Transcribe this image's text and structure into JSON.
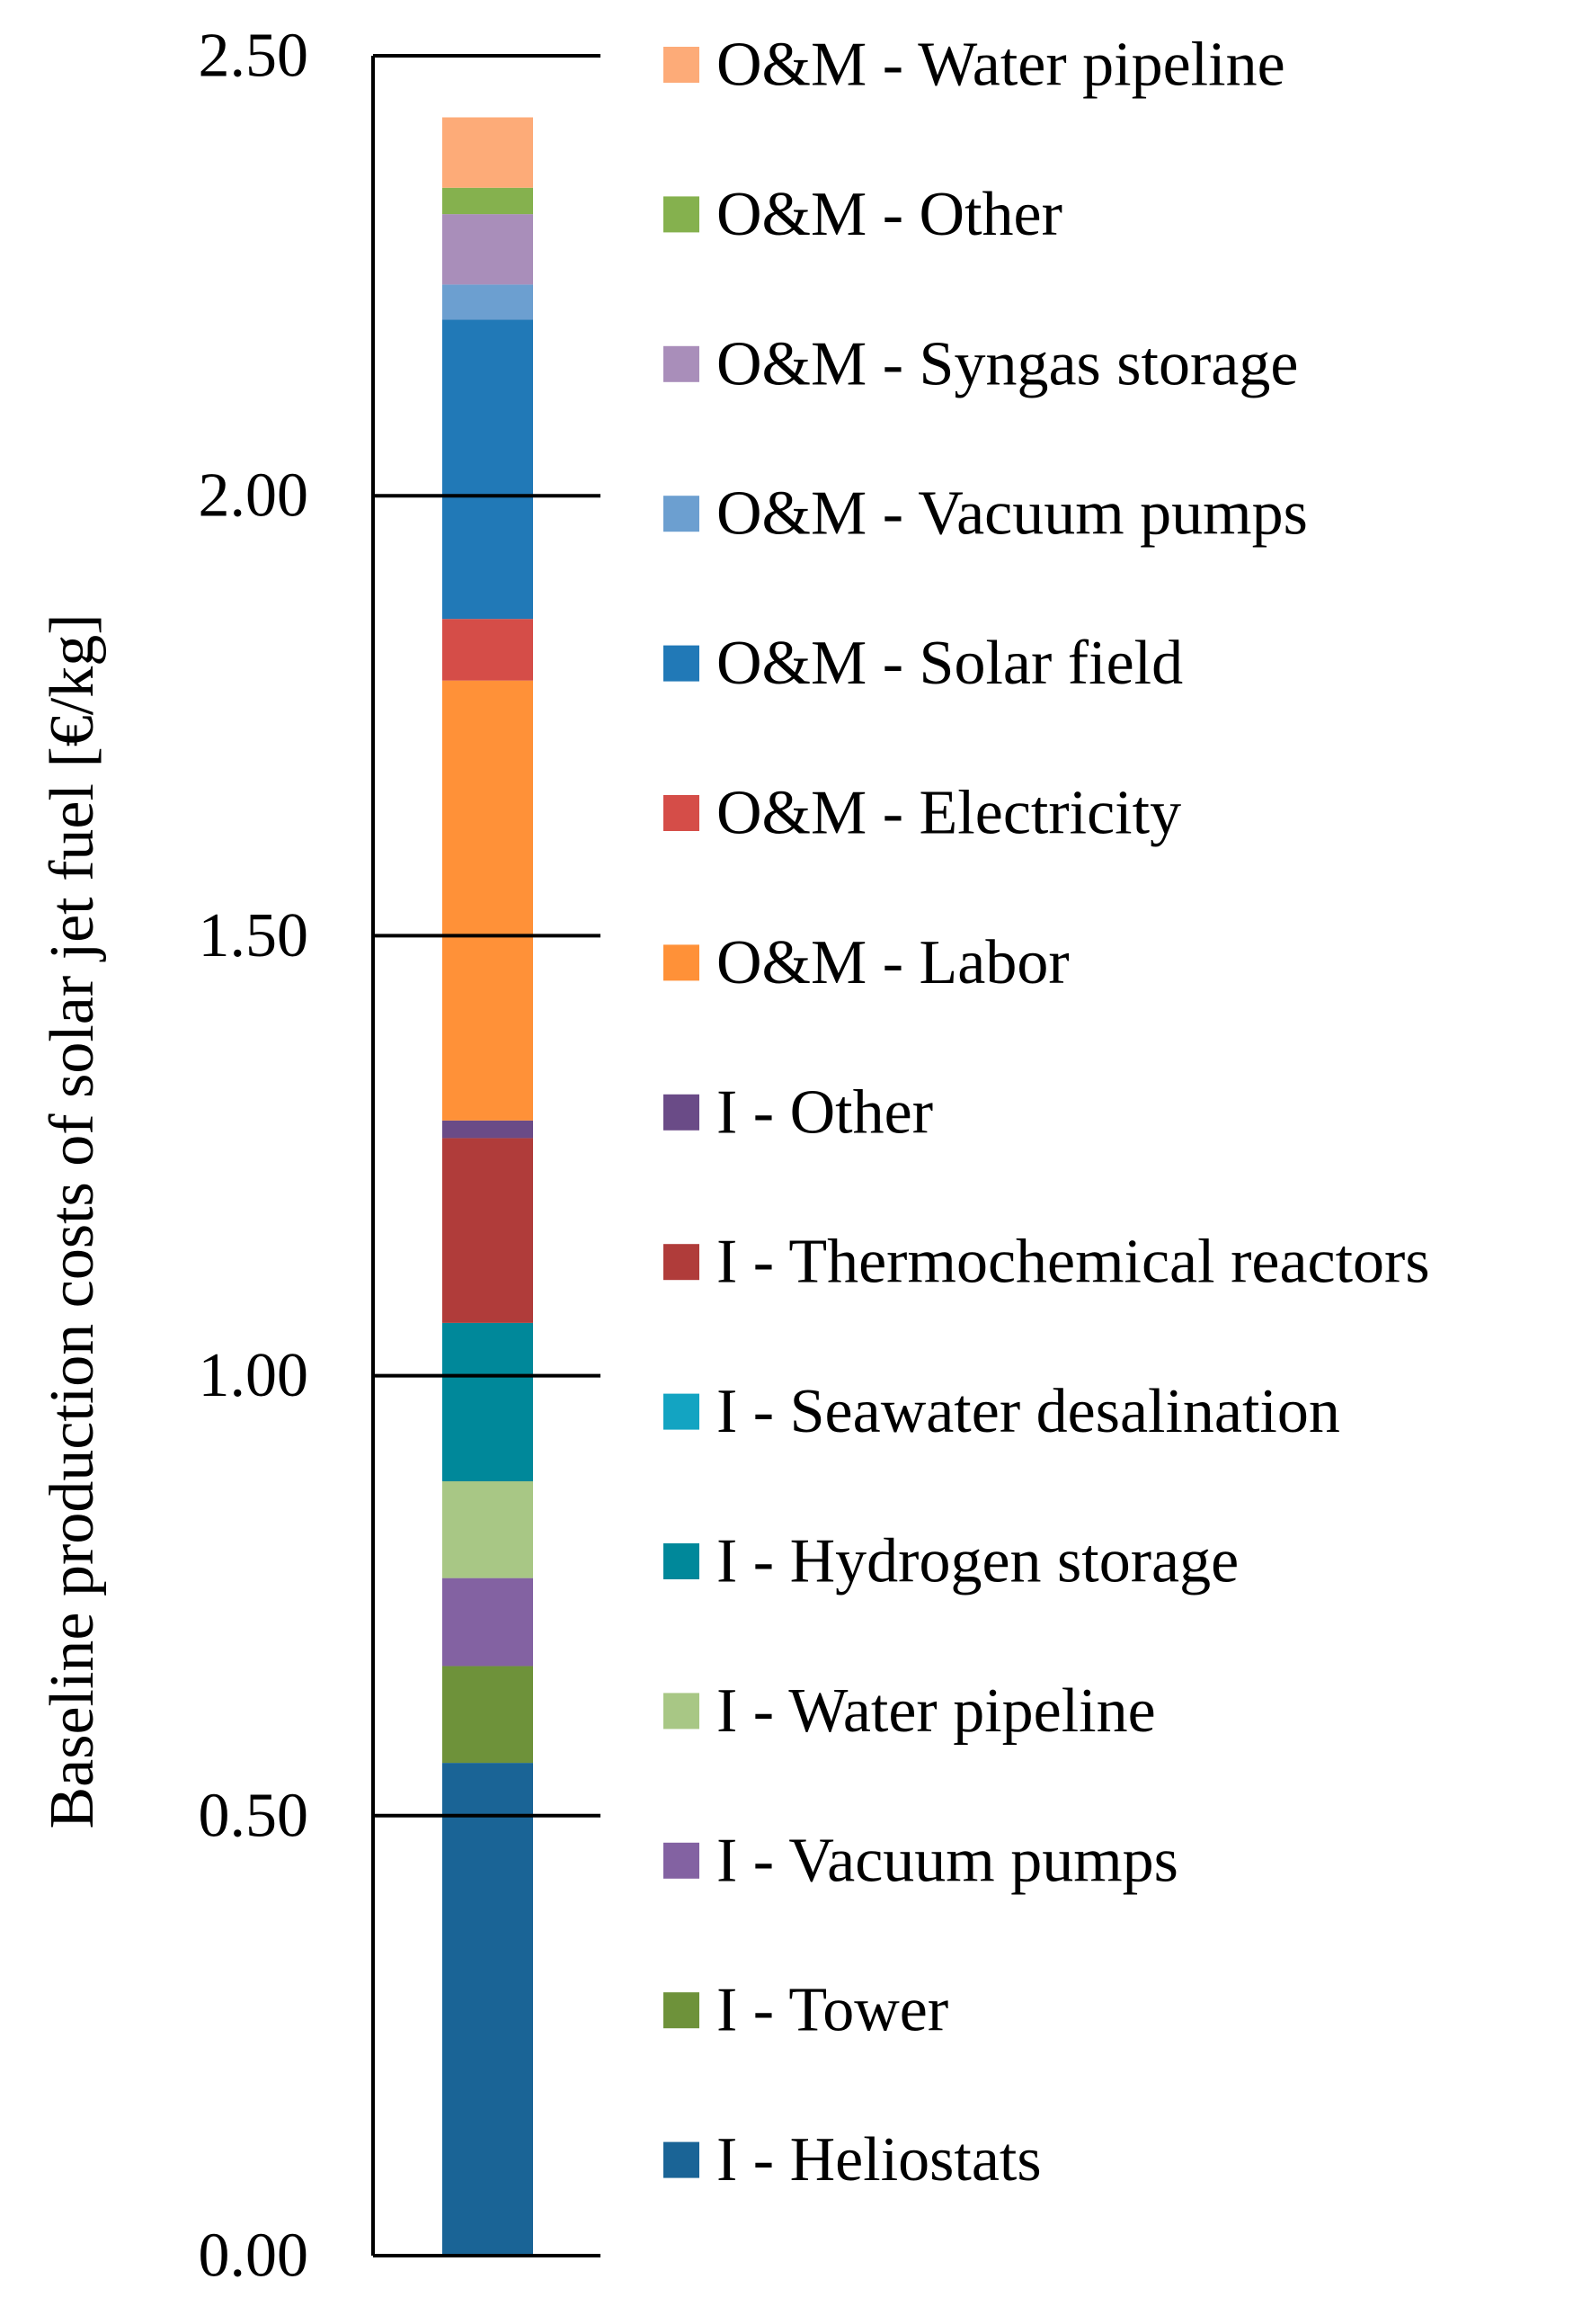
{
  "chart_data": {
    "type": "bar",
    "stacked": true,
    "categories": [
      ""
    ],
    "ylabel": "Baseline production costs of solar jet fuel [€/kg]",
    "xlabel": "",
    "ylim": [
      0,
      2.5
    ],
    "yticks": [
      "0.00",
      "0.50",
      "1.00",
      "1.50",
      "2.00",
      "2.50"
    ],
    "legend_position": "right",
    "series": [
      {
        "name": "I - Heliostats",
        "values": [
          0.56
        ],
        "color": "#1a6496"
      },
      {
        "name": "I - Tower",
        "values": [
          0.11
        ],
        "color": "#6e923a"
      },
      {
        "name": "I - Vacuum pumps",
        "values": [
          0.1
        ],
        "color": "#8362a2"
      },
      {
        "name": "I - Water pipeline",
        "values": [
          0.11
        ],
        "color": "#a8c785"
      },
      {
        "name": "I - Hydrogen storage",
        "values": [
          0.18
        ],
        "color": "#00889a"
      },
      {
        "name": "I - Seawater desalination",
        "values": [
          0.0
        ],
        "color": "#13a4c2"
      },
      {
        "name": "I - Thermochemical reactors",
        "values": [
          0.21
        ],
        "color": "#b03c3a"
      },
      {
        "name": "I - Other",
        "values": [
          0.02
        ],
        "color": "#6a4b87"
      },
      {
        "name": "O&M - Labor",
        "values": [
          0.5
        ],
        "color": "#ff9138"
      },
      {
        "name": "O&M - Electricity",
        "values": [
          0.07
        ],
        "color": "#d54d48"
      },
      {
        "name": "O&M - Solar field",
        "values": [
          0.34
        ],
        "color": "#2179b7"
      },
      {
        "name": "O&M - Vacuum pumps",
        "values": [
          0.04
        ],
        "color": "#6c9fd0"
      },
      {
        "name": "O&M - Syngas storage",
        "values": [
          0.08
        ],
        "color": "#a98eba"
      },
      {
        "name": "O&M - Other",
        "values": [
          0.03
        ],
        "color": "#85b14e"
      },
      {
        "name": "O&M - Water pipeline",
        "values": [
          0.08
        ],
        "color": "#fdab78"
      }
    ]
  }
}
